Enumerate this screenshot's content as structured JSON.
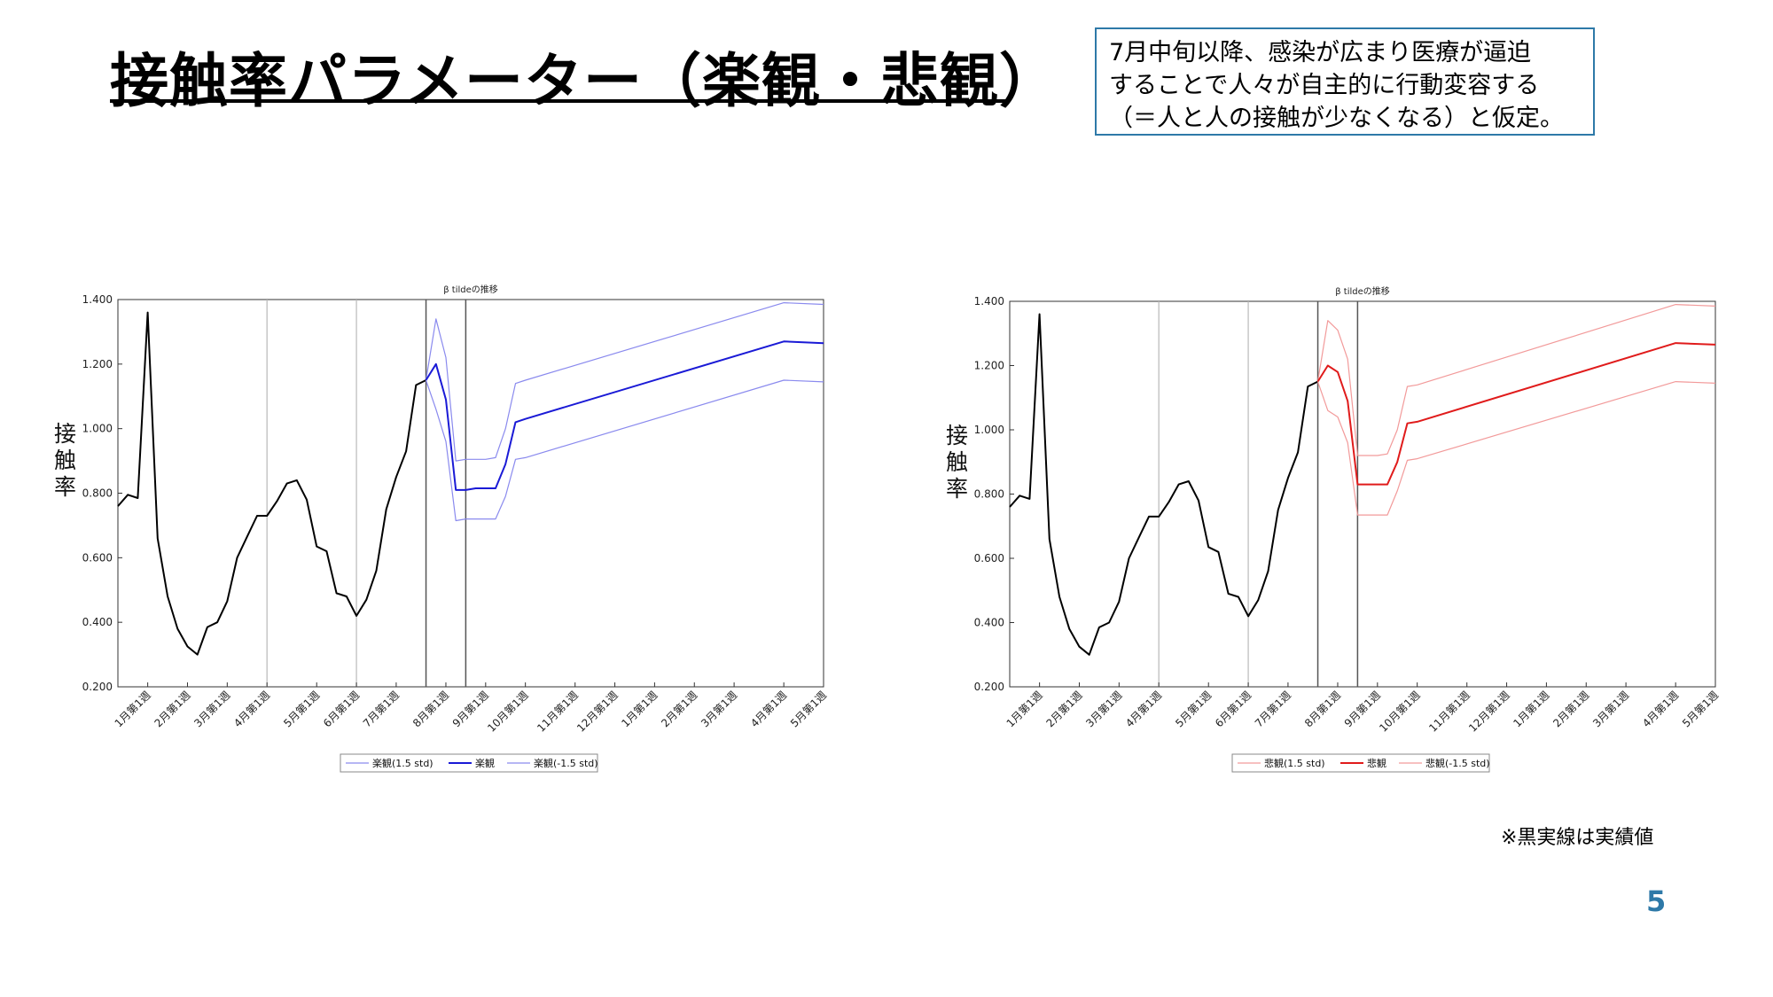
{
  "slide": {
    "title": "接触率パラメーター（楽観・悲観）",
    "note_lines": [
      "7月中旬以降、感染が広まり医療が逼迫",
      "することで人々が自主的に行動変容する",
      "（＝人と人の接触が少なくなる）と仮定。"
    ],
    "footnote": "※黒実線は実績値",
    "page_number": "5"
  },
  "chart_data": [
    {
      "type": "line",
      "title": "β tildeの推移",
      "ylabel": "接触率",
      "xlabel": "",
      "ylim": [
        0.2,
        1.4
      ],
      "yticks": [
        "0.200",
        "0.400",
        "0.600",
        "0.800",
        "1.000",
        "1.200",
        "1.400"
      ],
      "xlim": [
        -3,
        68
      ],
      "xticks": [
        {
          "label": "1月第1週",
          "x": 0
        },
        {
          "label": "2月第1週",
          "x": 4
        },
        {
          "label": "3月第1週",
          "x": 8
        },
        {
          "label": "4月第1週",
          "x": 12
        },
        {
          "label": "5月第1週",
          "x": 17
        },
        {
          "label": "6月第1週",
          "x": 21
        },
        {
          "label": "7月第1週",
          "x": 25
        },
        {
          "label": "8月第1週",
          "x": 30
        },
        {
          "label": "9月第1週",
          "x": 34
        },
        {
          "label": "10月第1週",
          "x": 38
        },
        {
          "label": "11月第1週",
          "x": 43
        },
        {
          "label": "12月第1週",
          "x": 47
        },
        {
          "label": "1月第1週",
          "x": 51
        },
        {
          "label": "2月第1週",
          "x": 55
        },
        {
          "label": "3月第1週",
          "x": 59
        },
        {
          "label": "4月第1週",
          "x": 64
        },
        {
          "label": "5月第1週",
          "x": 68
        }
      ],
      "vlines": [
        12,
        21,
        28,
        32
      ],
      "legend": "bottom",
      "colors": {
        "main": "#1a1ad6",
        "band": "#8a8aee",
        "actual": "#000000"
      },
      "series": [
        {
          "name": "実績値",
          "role": "actual",
          "x": [
            -3,
            -2,
            -1,
            0,
            1,
            2,
            3,
            4,
            5,
            6,
            7,
            8,
            9,
            10,
            11,
            12,
            13,
            14,
            15,
            16,
            17,
            18,
            19,
            20,
            21,
            22,
            23,
            24,
            25,
            26,
            27,
            28
          ],
          "y": [
            0.76,
            0.795,
            0.785,
            1.36,
            0.66,
            0.48,
            0.38,
            0.325,
            0.3,
            0.385,
            0.4,
            0.465,
            0.6,
            0.665,
            0.73,
            0.73,
            0.775,
            0.83,
            0.84,
            0.78,
            0.635,
            0.62,
            0.49,
            0.48,
            0.42,
            0.47,
            0.56,
            0.75,
            0.85,
            0.93,
            1.135,
            1.15
          ]
        },
        {
          "name": "楽観(1.5 std)",
          "role": "band",
          "x": [
            28,
            29,
            30,
            31,
            32,
            33,
            34,
            35,
            36,
            37,
            38,
            64,
            68
          ],
          "y": [
            1.15,
            1.34,
            1.22,
            0.9,
            0.905,
            0.905,
            0.905,
            0.91,
            1.0,
            1.14,
            1.15,
            1.39,
            1.385
          ]
        },
        {
          "name": "楽観",
          "role": "main",
          "x": [
            28,
            29,
            30,
            31,
            32,
            33,
            34,
            35,
            36,
            37,
            38,
            64,
            68
          ],
          "y": [
            1.15,
            1.2,
            1.09,
            0.81,
            0.81,
            0.815,
            0.815,
            0.815,
            0.89,
            1.02,
            1.03,
            1.27,
            1.265
          ]
        },
        {
          "name": "楽観(-1.5 std)",
          "role": "band",
          "x": [
            28,
            29,
            30,
            31,
            32,
            33,
            34,
            35,
            36,
            37,
            38,
            64,
            68
          ],
          "y": [
            1.15,
            1.06,
            0.96,
            0.715,
            0.72,
            0.72,
            0.72,
            0.72,
            0.79,
            0.905,
            0.91,
            1.15,
            1.145
          ]
        }
      ]
    },
    {
      "type": "line",
      "title": "β tildeの推移",
      "ylabel": "接触率",
      "xlabel": "",
      "ylim": [
        0.2,
        1.4
      ],
      "yticks": [
        "0.200",
        "0.400",
        "0.600",
        "0.800",
        "1.000",
        "1.200",
        "1.400"
      ],
      "xlim": [
        -3,
        68
      ],
      "xticks": [
        {
          "label": "1月第1週",
          "x": 0
        },
        {
          "label": "2月第1週",
          "x": 4
        },
        {
          "label": "3月第1週",
          "x": 8
        },
        {
          "label": "4月第1週",
          "x": 12
        },
        {
          "label": "5月第1週",
          "x": 17
        },
        {
          "label": "6月第1週",
          "x": 21
        },
        {
          "label": "7月第1週",
          "x": 25
        },
        {
          "label": "8月第1週",
          "x": 30
        },
        {
          "label": "9月第1週",
          "x": 34
        },
        {
          "label": "10月第1週",
          "x": 38
        },
        {
          "label": "11月第1週",
          "x": 43
        },
        {
          "label": "12月第1週",
          "x": 47
        },
        {
          "label": "1月第1週",
          "x": 51
        },
        {
          "label": "2月第1週",
          "x": 55
        },
        {
          "label": "3月第1週",
          "x": 59
        },
        {
          "label": "4月第1週",
          "x": 64
        },
        {
          "label": "5月第1週",
          "x": 68
        }
      ],
      "vlines": [
        12,
        21,
        28,
        32
      ],
      "legend": "bottom",
      "colors": {
        "main": "#e01b1b",
        "band": "#f29a9a",
        "actual": "#000000"
      },
      "series": [
        {
          "name": "実績値",
          "role": "actual",
          "x": [
            -3,
            -2,
            -1,
            0,
            1,
            2,
            3,
            4,
            5,
            6,
            7,
            8,
            9,
            10,
            11,
            12,
            13,
            14,
            15,
            16,
            17,
            18,
            19,
            20,
            21,
            22,
            23,
            24,
            25,
            26,
            27,
            28
          ],
          "y": [
            0.76,
            0.795,
            0.785,
            1.36,
            0.66,
            0.48,
            0.38,
            0.325,
            0.3,
            0.385,
            0.4,
            0.465,
            0.6,
            0.665,
            0.73,
            0.73,
            0.775,
            0.83,
            0.84,
            0.78,
            0.635,
            0.62,
            0.49,
            0.48,
            0.42,
            0.47,
            0.56,
            0.75,
            0.85,
            0.93,
            1.135,
            1.15
          ]
        },
        {
          "name": "悲観(1.5 std)",
          "role": "band",
          "x": [
            28,
            29,
            30,
            31,
            32,
            33,
            34,
            35,
            36,
            37,
            38,
            64,
            68
          ],
          "y": [
            1.15,
            1.34,
            1.31,
            1.22,
            0.92,
            0.92,
            0.92,
            0.925,
            1.0,
            1.135,
            1.14,
            1.39,
            1.385
          ]
        },
        {
          "name": "悲観",
          "role": "main",
          "x": [
            28,
            29,
            30,
            31,
            32,
            33,
            34,
            35,
            36,
            37,
            38,
            64,
            68
          ],
          "y": [
            1.15,
            1.2,
            1.18,
            1.09,
            0.83,
            0.83,
            0.83,
            0.83,
            0.9,
            1.02,
            1.025,
            1.27,
            1.265
          ]
        },
        {
          "name": "悲観(-1.5 std)",
          "role": "band",
          "x": [
            28,
            29,
            30,
            31,
            32,
            33,
            34,
            35,
            36,
            37,
            38,
            64,
            68
          ],
          "y": [
            1.15,
            1.06,
            1.04,
            0.96,
            0.735,
            0.735,
            0.735,
            0.735,
            0.81,
            0.905,
            0.91,
            1.15,
            1.145
          ]
        }
      ]
    }
  ]
}
